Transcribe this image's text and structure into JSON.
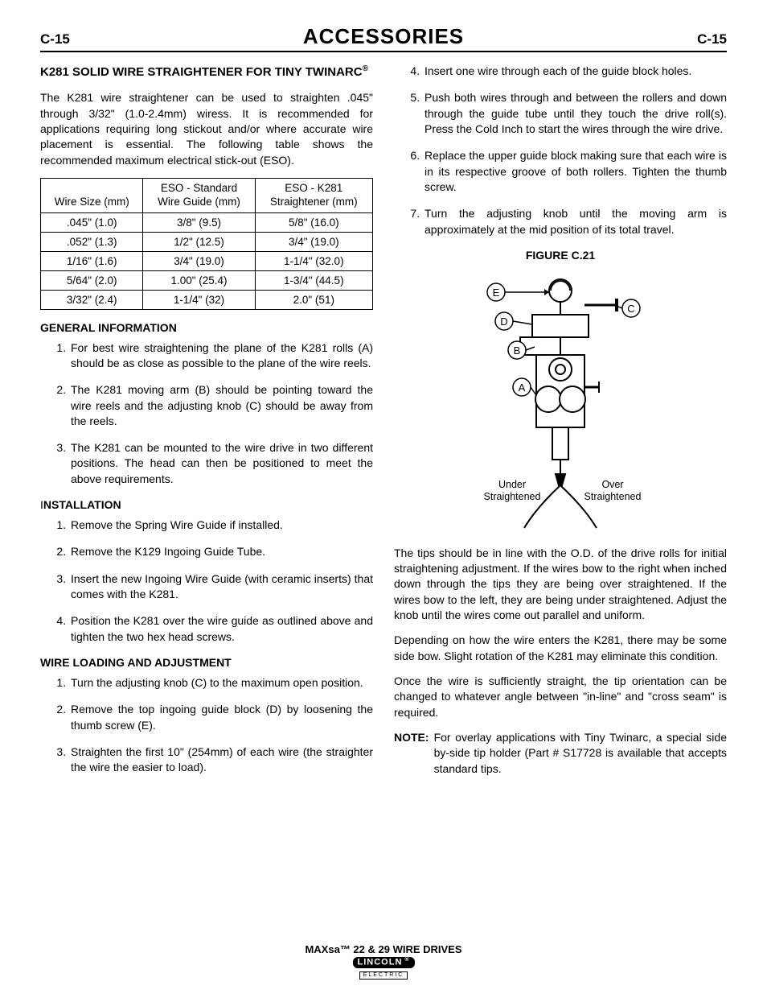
{
  "header": {
    "left": "C-15",
    "title": "ACCESSORIES",
    "right": "C-15"
  },
  "left_col": {
    "heading": "K281 SOLID WIRE STRAIGHTENER FOR TINY TWINARC",
    "heading_reg": "®",
    "intro": "The K281 wire straightener can be used to straighten .045\" through 3/32\" (1.0-2.4mm) wiress. It is recommended for applications requiring long stickout and/or where accurate wire placement is essential. The following table shows the recommended maximum electrical stick-out (ESO).",
    "table": {
      "headers": [
        "Wire Size (mm)",
        "ESO - Standard\nWire Guide (mm)",
        "ESO - K281\nStraightener (mm)"
      ],
      "rows": [
        [
          ".045\" (1.0)",
          "3/8\" (9.5)",
          "5/8\" (16.0)"
        ],
        [
          ".052\" (1.3)",
          "1/2\" (12.5)",
          "3/4\" (19.0)"
        ],
        [
          "1/16\" (1.6)",
          "3/4\" (19.0)",
          "1-1/4\" (32.0)"
        ],
        [
          "5/64\" (2.0)",
          "1.00\" (25.4)",
          "1-3/4\" (44.5)"
        ],
        [
          "3/32\" (2.4)",
          "1-1/4\" (32)",
          "2.0\" (51)"
        ]
      ]
    },
    "general_info_head": "GENERAL INFORMATION",
    "general_info": [
      "For best wire straightening the plane of the K281 rolls (A) should be as close as possible to the plane of the wire reels.",
      "The K281 moving arm (B) should be pointing toward the wire reels and the adjusting knob (C) should be away from the reels.",
      "The K281 can be mounted to the wire drive in two different positions. The head can then be positioned to meet the above requirements."
    ],
    "install_head": "INSTALLATION",
    "install_first_char": "I",
    "install": [
      "Remove the Spring Wire Guide if installed.",
      "Remove the K129 Ingoing Guide Tube.",
      "Insert the new Ingoing Wire Guide (with ceramic inserts) that comes with the K281.",
      "Position the K281 over the wire guide as outlined above and tighten the two hex head screws."
    ],
    "load_head": "WIRE LOADING AND ADJUSTMENT",
    "load": [
      "Turn the adjusting knob (C) to the maximum open position.",
      "Remove the top ingoing guide block (D) by loosening the thumb screw (E).",
      "Straighten the first 10\" (254mm) of each wire (the straighter the wire the easier to load)."
    ]
  },
  "right_col": {
    "load_cont_start": 4,
    "load_cont": [
      "Insert one wire through each of the guide block holes.",
      "Push both wires through and between the rollers and down through the guide tube until they touch the drive roll(s). Press the Cold Inch to start the wires through the wire drive.",
      "Replace the upper guide block making sure that each wire is in its respective groove of both rollers. Tighten the thumb screw.",
      "Turn the adjusting knob until the moving arm is approximately at the mid position of its total travel."
    ],
    "figure_title": "FIGURE C.21",
    "figure": {
      "labels": [
        "E",
        "C",
        "D",
        "B",
        "A"
      ],
      "under": "Under\nStraightened",
      "over": "Over\nStraightened"
    },
    "para1": "The tips should be in line with the O.D. of the drive rolls for initial straightening adjustment.  If the wires bow to the right when inched down through the tips they are being over straightened.  If the wires bow to the left, they are being under straightened. Adjust the knob until the wires come out parallel and uniform.",
    "para2": "Depending on how the wire enters the K281, there may be some side bow.  Slight rotation of the K281 may eliminate this condition.",
    "para3": "Once the wire is sufficiently straight, the tip orientation can be changed to whatever angle between \"in-line\" and \"cross seam\" is required.",
    "note_label": "NOTE:",
    "note": "For overlay applications with Tiny Twinarc, a special side by-side tip holder (Part # S17728 is available that accepts standard tips."
  },
  "footer": {
    "title": "MAXsa™ 22 & 29 WIRE DRIVES",
    "logo_top": "LINCOLN",
    "logo_bot": "ELECTRIC"
  }
}
